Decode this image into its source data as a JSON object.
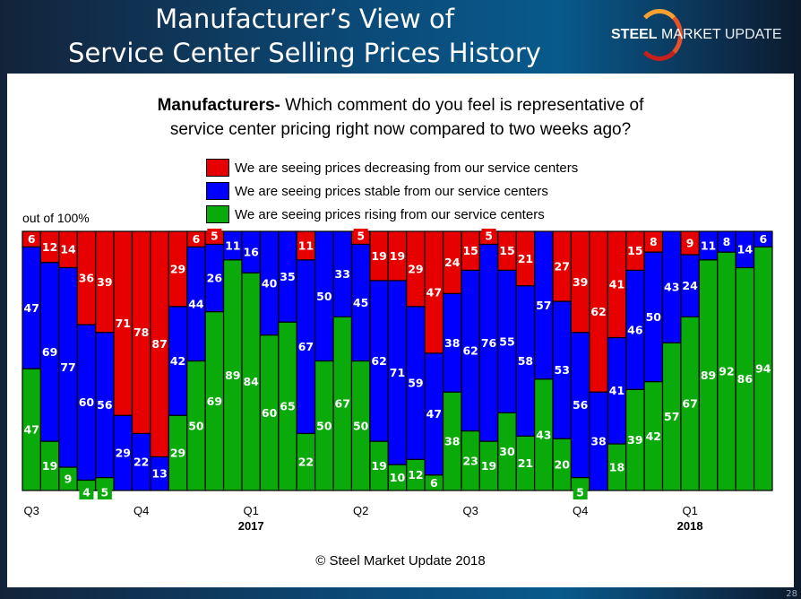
{
  "header": {
    "title_line1": "Manufacturer’s View of",
    "title_line2": "Service Center Selling Prices History",
    "logo": {
      "bold": "STEEL",
      "mid": "MARKET",
      "light": "UPDATE"
    }
  },
  "page_number": "28",
  "chart_data": {
    "type": "bar",
    "stacked": true,
    "title_bold": "Manufacturers-",
    "title_rest_line1": " Which comment do you feel is representative of",
    "title_line2": "service center pricing right now compared to two weeks ago?",
    "ylabel": "out of 100%",
    "ylim": [
      0,
      100
    ],
    "grid": false,
    "legend_position": "top-center",
    "colors": {
      "decreasing": "#e60000",
      "stable": "#0000ff",
      "rising": "#0aaa0a"
    },
    "legend": [
      {
        "key": "decreasing",
        "label": "We are seeing prices decreasing from our service centers"
      },
      {
        "key": "stable",
        "label": "We are seeing prices stable from our service centers"
      },
      {
        "key": "rising",
        "label": "We are seeing prices rising from our service centers"
      }
    ],
    "x_tick_labels": [
      {
        "bar": 1,
        "label": "Q3",
        "year": ""
      },
      {
        "bar": 7,
        "label": "Q4",
        "year": ""
      },
      {
        "bar": 13,
        "label": "Q1",
        "year": "2017"
      },
      {
        "bar": 19,
        "label": "Q2",
        "year": ""
      },
      {
        "bar": 25,
        "label": "Q3",
        "year": ""
      },
      {
        "bar": 31,
        "label": "Q4",
        "year": ""
      },
      {
        "bar": 37,
        "label": "Q1",
        "year": "2018"
      }
    ],
    "series": [
      {
        "key": "rising",
        "values": [
          47,
          19,
          9,
          4,
          5,
          0,
          0,
          0,
          29,
          50,
          69,
          89,
          84,
          60,
          65,
          22,
          50,
          67,
          50,
          19,
          10,
          12,
          6,
          38,
          23,
          19,
          30,
          21,
          43,
          20,
          5,
          0,
          18,
          39,
          42,
          57,
          67,
          89,
          92,
          86,
          94
        ]
      },
      {
        "key": "stable",
        "values": [
          47,
          69,
          77,
          60,
          56,
          29,
          22,
          13,
          42,
          44,
          26,
          11,
          16,
          40,
          35,
          67,
          50,
          33,
          45,
          62,
          71,
          59,
          47,
          38,
          62,
          76,
          55,
          58,
          57,
          53,
          56,
          38,
          41,
          46,
          50,
          43,
          24,
          11,
          8,
          14,
          6
        ]
      },
      {
        "key": "decreasing",
        "values": [
          6,
          12,
          14,
          36,
          39,
          71,
          78,
          87,
          29,
          6,
          5,
          0,
          0,
          0,
          0,
          11,
          0,
          0,
          5,
          19,
          19,
          29,
          47,
          24,
          15,
          5,
          15,
          21,
          0,
          27,
          39,
          62,
          41,
          15,
          8,
          0,
          9,
          0,
          0,
          0,
          0
        ]
      }
    ]
  },
  "footer": {
    "copyright": "© Steel Market Update 2018"
  }
}
